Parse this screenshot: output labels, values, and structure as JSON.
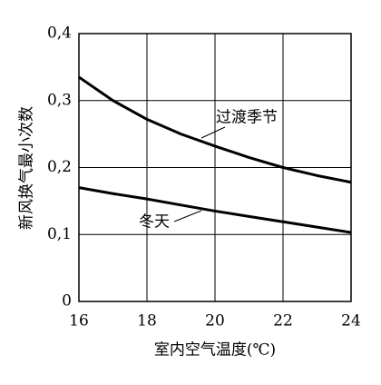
{
  "chart_data": {
    "type": "line",
    "x_label": "室内空气温度(℃)",
    "y_label": "新风换气最小次数",
    "x": [
      16,
      17,
      18,
      19,
      20,
      21,
      22,
      23,
      24
    ],
    "series": [
      {
        "name": "过渡季节",
        "color": "#000000",
        "values": [
          0.335,
          0.3,
          0.272,
          0.25,
          0.232,
          0.215,
          0.2,
          0.188,
          0.178
        ]
      },
      {
        "name": "冬天",
        "color": "#000000",
        "values": [
          0.17,
          0.161,
          0.153,
          0.144,
          0.135,
          0.127,
          0.119,
          0.111,
          0.103
        ]
      }
    ],
    "xlim": [
      16,
      24
    ],
    "xticks": [
      16,
      18,
      20,
      22,
      24
    ],
    "ylim": [
      0,
      0.4
    ],
    "yticks": [
      0,
      {
        "value": 0.1,
        "label": "0,1"
      },
      {
        "value": 0.2,
        "label": "0,2"
      },
      {
        "value": 0.3,
        "label": "0,3"
      },
      {
        "value": 0.4,
        "label": "0,4"
      }
    ],
    "grid": true
  }
}
